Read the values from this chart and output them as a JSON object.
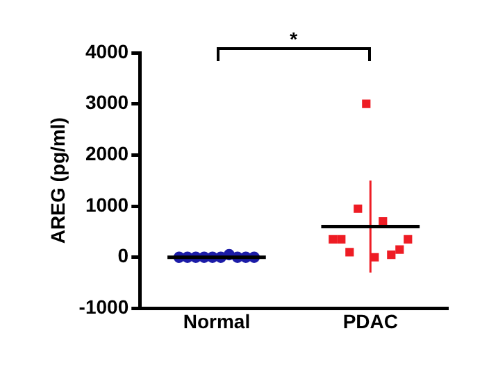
{
  "chart_data": {
    "type": "scatter",
    "ylabel": "AREG (pg/ml)",
    "categories": [
      "Normal",
      "PDAC"
    ],
    "ylim": [
      -1000,
      4000
    ],
    "yticks": [
      -1000,
      0,
      1000,
      2000,
      3000,
      4000
    ],
    "grid": false,
    "legend": false,
    "annotations": [
      "*"
    ],
    "series": [
      {
        "marker": "circle",
        "color": "#1c1ca8",
        "x": [
          "Normal",
          "Normal",
          "Normal",
          "Normal",
          "Normal",
          "Normal",
          "Normal",
          "Normal",
          "Normal",
          "Normal"
        ],
        "values": [
          0,
          0,
          0,
          0,
          0,
          0,
          50,
          0,
          0,
          0
        ]
      },
      {
        "marker": "square",
        "color": "#ee1c24",
        "x": [
          "PDAC",
          "PDAC",
          "PDAC",
          "PDAC",
          "PDAC",
          "PDAC",
          "PDAC",
          "PDAC",
          "PDAC",
          "PDAC"
        ],
        "values": [
          350,
          350,
          100,
          950,
          3000,
          0,
          700,
          50,
          150,
          350
        ]
      },
      {
        "type": "line",
        "marker": "none",
        "color": "#ee1c24",
        "x": [
          "PDAC",
          "PDAC"
        ],
        "values": [
          -300,
          1500
        ]
      }
    ],
    "ref_lines": [
      {
        "axis": "y",
        "value": 0,
        "color": "#000000"
      },
      {
        "axis": "y",
        "value": 600,
        "color": "#000000"
      }
    ]
  }
}
